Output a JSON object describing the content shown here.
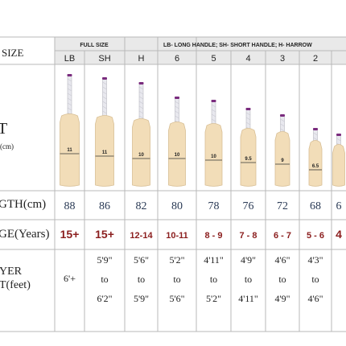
{
  "header": {
    "size_label": "SIZE",
    "full_size_label": "FULL SIZE",
    "legend": "LB- LONG HANDLE; SH- SHORT HANDLE; H- HARROW"
  },
  "columns": [
    "LB",
    "SH",
    "H",
    "6",
    "5",
    "4",
    "3",
    "2",
    ""
  ],
  "rows": {
    "bat": {
      "label": "T",
      "sublabel": "(cm)",
      "values": [
        "11",
        "11",
        "10",
        "10",
        "10",
        "9.5",
        "9",
        "6.5",
        ""
      ]
    },
    "length": {
      "label": "GTH(cm)",
      "values": [
        "88",
        "86",
        "82",
        "80",
        "78",
        "76",
        "72",
        "68",
        "6"
      ]
    },
    "age": {
      "label": "GE(Years)",
      "values": [
        "15+",
        "15+",
        "12-14",
        "10-11",
        "8 - 9",
        "7 - 8",
        "6 - 7",
        "5 - 6",
        "4"
      ]
    },
    "height": {
      "label_line1": "YER",
      "label_line2": "T(feet)",
      "values": [
        [
          "6'+"
        ],
        [
          "5'9\"",
          "to",
          "6'2\""
        ],
        [
          "5'6\"",
          "to",
          "5'9\""
        ],
        [
          "5'2\"",
          "to",
          "5'6\""
        ],
        [
          "4'11\"",
          "to",
          "5'2\""
        ],
        [
          "4'9\"",
          "to",
          "4'11\""
        ],
        [
          "4'6\"",
          "to",
          "4'9\""
        ],
        [
          "4'3\"",
          "to",
          "4'6\""
        ],
        []
      ]
    }
  },
  "colors": {
    "grid": "#b9b9b9",
    "header_band": "#e9e9e9",
    "age_text": "#8b1e1e",
    "length_text": "#2a3a55",
    "wood": "#f2ddb8",
    "handle": "#e8e8ee",
    "grip_accent": "#7a2c7e"
  }
}
